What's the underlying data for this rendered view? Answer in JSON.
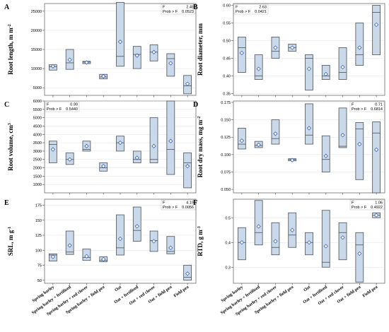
{
  "colors": {
    "box_fill": "#c9d9ea",
    "box_stroke": "#4a4f55",
    "marker": "#3a62b5",
    "grid": "#d9d9d9"
  },
  "categories": [
    "Spring barley",
    "Spring barley + fertilised",
    "Spring barley + red clover",
    "Spring barley + field pea",
    "Oat",
    "Oat + fertilised",
    "Oat + red clover",
    "Oat + field pea",
    "Field pea"
  ],
  "chart_data": [
    {
      "panel": "A",
      "type": "box",
      "ylabel": "Root length, m m",
      "ylabel_exp": "-2",
      "ylim": [
        3000,
        27000
      ],
      "yticks": [
        "5000",
        "10000",
        "15000",
        "20000",
        "25000"
      ],
      "stat_F_label": "F",
      "stat_F": "2.48",
      "stat_P_label": "Prob > F",
      "stat_P": "0.0523",
      "stat_side": "right",
      "boxes": [
        {
          "q1": 9600,
          "q3": 11000,
          "median": 10500,
          "mean": 10600
        },
        {
          "q1": 9800,
          "q3": 15000,
          "median": 11500,
          "mean": 12300
        },
        {
          "q1": 11300,
          "q3": 11900,
          "median": 11700,
          "mean": 11600
        },
        {
          "q1": 7300,
          "q3": 8500,
          "median": 7800,
          "mean": 8000
        },
        {
          "q1": 10600,
          "q3": 27300,
          "median": 13200,
          "mean": 17000
        },
        {
          "q1": 10000,
          "q3": 15800,
          "median": 13700,
          "mean": 13400
        },
        {
          "q1": 12000,
          "q3": 16200,
          "median": 14300,
          "mean": 14300
        },
        {
          "q1": 8000,
          "q3": 13900,
          "median": 12600,
          "mean": 11400
        },
        {
          "q1": 3400,
          "q3": 8200,
          "median": 5500,
          "mean": 6000
        }
      ]
    },
    {
      "panel": "B",
      "type": "box",
      "ylabel": "Root diameter, mm",
      "ylabel_exp": "",
      "ylim": [
        0.345,
        0.605
      ],
      "yticks": [
        "0.35",
        "0.40",
        "0.45",
        "0.50",
        "0.55",
        "0.60"
      ],
      "stat_F_label": "F",
      "stat_F": "2.63",
      "stat_P_label": "Prob > F",
      "stat_P": "0.0421",
      "stat_side": "left",
      "boxes": [
        {
          "q1": 0.41,
          "q3": 0.51,
          "median": 0.48,
          "mean": 0.465
        },
        {
          "q1": 0.39,
          "q3": 0.46,
          "median": 0.4,
          "mean": 0.42
        },
        {
          "q1": 0.45,
          "q3": 0.51,
          "median": 0.47,
          "mean": 0.48
        },
        {
          "q1": 0.47,
          "q3": 0.49,
          "median": 0.48,
          "mean": 0.48
        },
        {
          "q1": 0.36,
          "q3": 0.46,
          "median": 0.45,
          "mean": 0.42
        },
        {
          "q1": 0.39,
          "q3": 0.43,
          "median": 0.4,
          "mean": 0.405
        },
        {
          "q1": 0.39,
          "q3": 0.48,
          "median": 0.41,
          "mean": 0.425
        },
        {
          "q1": 0.43,
          "q3": 0.55,
          "median": 0.46,
          "mean": 0.48
        },
        {
          "q1": 0.46,
          "q3": 0.6,
          "median": 0.58,
          "mean": 0.545
        }
      ]
    },
    {
      "panel": "C",
      "type": "box",
      "ylabel": "Root volume, cm",
      "ylabel_exp": "3",
      "ylim": [
        500,
        6000
      ],
      "yticks": [
        "1000",
        "1500",
        "2000",
        "2500",
        "3000",
        "3500",
        "4000",
        "4500",
        "5000",
        "5500",
        "6000"
      ],
      "stat_F_label": "F",
      "stat_F": "0.99",
      "stat_P_label": "Prob > F",
      "stat_P": "0.5440",
      "stat_side": "left",
      "boxes": [
        {
          "q1": 2300,
          "q3": 3600,
          "median": 3400,
          "mean": 3100
        },
        {
          "q1": 2200,
          "q3": 2900,
          "median": 2500,
          "mean": 2500
        },
        {
          "q1": 3000,
          "q3": 3600,
          "median": 3100,
          "mean": 3300
        },
        {
          "q1": 1800,
          "q3": 2300,
          "median": 2000,
          "mean": 2100
        },
        {
          "q1": 3000,
          "q3": 3900,
          "median": 3500,
          "mean": 3500
        },
        {
          "q1": 2300,
          "q3": 3000,
          "median": 2500,
          "mean": 2600
        },
        {
          "q1": 2300,
          "q3": 5000,
          "median": 2500,
          "mean": 3300
        },
        {
          "q1": 1600,
          "q3": 6000,
          "median": 3100,
          "mean": 3600
        },
        {
          "q1": 800,
          "q3": 2900,
          "median": 2300,
          "mean": 2100
        }
      ]
    },
    {
      "panel": "D",
      "type": "box",
      "ylabel": "Root dry mass, mg m",
      "ylabel_exp": "-2",
      "ylim": [
        0.045,
        0.177
      ],
      "yticks": [
        "0.050",
        "0.075",
        "0.100",
        "0.125",
        "0.150",
        "0.175"
      ],
      "stat_F_label": "F",
      "stat_F": "0.71",
      "stat_P_label": "Prob > F",
      "stat_P": "0.6814",
      "stat_side": "right",
      "boxes": [
        {
          "q1": 0.108,
          "q3": 0.138,
          "median": 0.115,
          "mean": 0.12
        },
        {
          "q1": 0.11,
          "q3": 0.119,
          "median": 0.113,
          "mean": 0.114
        },
        {
          "q1": 0.115,
          "q3": 0.15,
          "median": 0.123,
          "mean": 0.13
        },
        {
          "q1": 0.091,
          "q3": 0.094,
          "median": 0.093,
          "mean": 0.092
        },
        {
          "q1": 0.115,
          "q3": 0.173,
          "median": 0.128,
          "mean": 0.138
        },
        {
          "q1": 0.075,
          "q3": 0.127,
          "median": 0.093,
          "mean": 0.098
        },
        {
          "q1": 0.11,
          "q3": 0.167,
          "median": 0.112,
          "mean": 0.128
        },
        {
          "q1": 0.064,
          "q3": 0.146,
          "median": 0.137,
          "mean": 0.115
        },
        {
          "q1": 0.045,
          "q3": 0.147,
          "median": 0.131,
          "mean": 0.107
        }
      ]
    },
    {
      "panel": "E",
      "type": "box",
      "ylabel": "SRL, m g",
      "ylabel_exp": "-1",
      "ylim": [
        45,
        185
      ],
      "yticks": [
        "50",
        "75",
        "100",
        "125",
        "150",
        "175"
      ],
      "stat_F_label": "F",
      "stat_F": "4.19",
      "stat_P_label": "Prob > F",
      "stat_P": "0.0056",
      "stat_side": "right",
      "boxes": [
        {
          "q1": 82,
          "q3": 94,
          "median": 92,
          "mean": 89
        },
        {
          "q1": 93,
          "q3": 132,
          "median": 97,
          "mean": 108
        },
        {
          "q1": 83,
          "q3": 102,
          "median": 88,
          "mean": 90
        },
        {
          "q1": 81,
          "q3": 89,
          "median": 83,
          "mean": 85
        },
        {
          "q1": 92,
          "q3": 159,
          "median": 104,
          "mean": 119
        },
        {
          "q1": 115,
          "q3": 172,
          "median": 133,
          "mean": 140
        },
        {
          "q1": 98,
          "q3": 132,
          "median": 116,
          "mean": 115
        },
        {
          "q1": 94,
          "q3": 123,
          "median": 98,
          "mean": 104
        },
        {
          "q1": 50,
          "q3": 75,
          "median": 55,
          "mean": 61
        }
      ]
    },
    {
      "panel": "F",
      "type": "box",
      "ylabel": "RTD, g m",
      "ylabel_exp": "-3",
      "ylim": [
        0.235,
        0.575
      ],
      "yticks": [
        "0.3",
        "0.4",
        "0.5"
      ],
      "stat_F_label": "F",
      "stat_F": "1.06",
      "stat_P_label": "Prob > F",
      "stat_P": "0.4922",
      "stat_side": "right",
      "boxes": [
        {
          "q1": 0.33,
          "q3": 0.46,
          "median": 0.4,
          "mean": 0.4
        },
        {
          "q1": 0.39,
          "q3": 0.57,
          "median": 0.44,
          "mean": 0.465
        },
        {
          "q1": 0.35,
          "q3": 0.48,
          "median": 0.38,
          "mean": 0.405
        },
        {
          "q1": 0.38,
          "q3": 0.52,
          "median": 0.43,
          "mean": 0.45
        },
        {
          "q1": 0.35,
          "q3": 0.44,
          "median": 0.4,
          "mean": 0.4
        },
        {
          "q1": 0.3,
          "q3": 0.53,
          "median": 0.32,
          "mean": 0.385
        },
        {
          "q1": 0.33,
          "q3": 0.48,
          "median": 0.44,
          "mean": 0.42
        },
        {
          "q1": 0.24,
          "q3": 0.44,
          "median": 0.39,
          "mean": 0.355
        },
        {
          "q1": 0.5,
          "q3": 0.52,
          "median": 0.51,
          "mean": 0.51
        }
      ]
    }
  ]
}
